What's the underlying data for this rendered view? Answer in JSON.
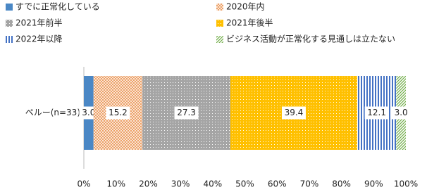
{
  "chart_data": {
    "type": "stacked-bar-horizontal",
    "categories": [
      "ペルー(n=33)"
    ],
    "series": [
      {
        "name": "すでに正常化している",
        "color": "#4a87c5",
        "pattern": "solid",
        "values": [
          3.0
        ],
        "value_labels": [
          "3.0"
        ]
      },
      {
        "name": "2020年内",
        "color": "#ec9a5c",
        "pattern": "crosshatch",
        "values": [
          15.2
        ],
        "value_labels": [
          "15.2"
        ]
      },
      {
        "name": "2021年前半",
        "color": "#a5a5a5",
        "pattern": "dots",
        "values": [
          27.3
        ],
        "value_labels": [
          "27.3"
        ]
      },
      {
        "name": "2021年後半",
        "color": "#ffc000",
        "pattern": "dots",
        "values": [
          39.4
        ],
        "value_labels": [
          "39.4"
        ]
      },
      {
        "name": "2022年以降",
        "color": "#4472c4",
        "pattern": "vertical",
        "values": [
          12.1
        ],
        "value_labels": [
          "12.1"
        ]
      },
      {
        "name": "ビジネス活動が正常化する見通しは立たない",
        "color": "#70ad47",
        "pattern": "diagonal",
        "values": [
          3.0
        ],
        "value_labels": [
          "3.0"
        ]
      }
    ],
    "xlim": [
      0,
      100
    ],
    "xticks": [
      {
        "value": 0,
        "label": "0%"
      },
      {
        "value": 10,
        "label": "10%"
      },
      {
        "value": 20,
        "label": "20%"
      },
      {
        "value": 30,
        "label": "30%"
      },
      {
        "value": 40,
        "label": "40%"
      },
      {
        "value": 50,
        "label": "50%"
      },
      {
        "value": 60,
        "label": "60%"
      },
      {
        "value": 70,
        "label": "70%"
      },
      {
        "value": 80,
        "label": "80%"
      },
      {
        "value": 90,
        "label": "90%"
      },
      {
        "value": 100,
        "label": "100%"
      }
    ],
    "legend": "top"
  }
}
